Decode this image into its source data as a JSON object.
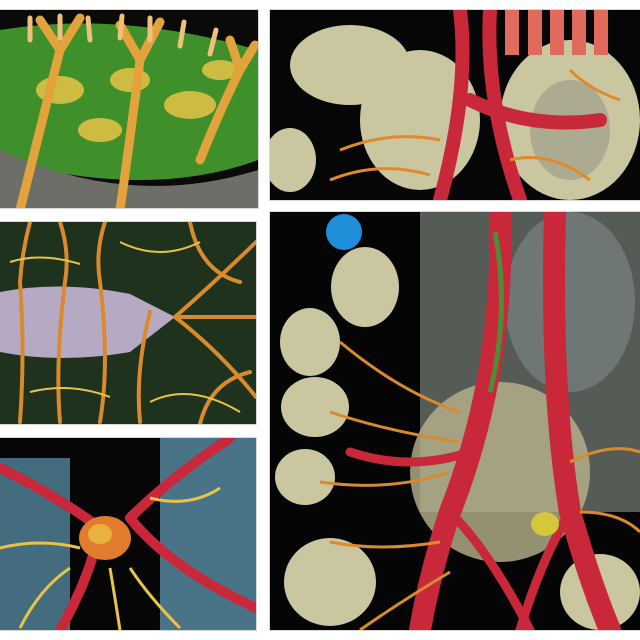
{
  "image": {
    "description_panels": [
      {
        "id": "panel-top-left",
        "subject": "green-leaf-with-yellow-branches"
      },
      {
        "id": "panel-top-right",
        "subject": "red-vessels-over-lung-lobes"
      },
      {
        "id": "panel-middle-left",
        "subject": "lavender-membrane-with-orange-fibers"
      },
      {
        "id": "panel-large-right",
        "subject": "branching-red-arteries-and-alveoli"
      },
      {
        "id": "panel-bottom-left",
        "subject": "red-nerve-cluster-on-blue-tissue"
      }
    ],
    "palette": {
      "background": "#ffffff",
      "panel_black": "#060806",
      "leaf_green": "#3f8f2a",
      "vein_yellow": "#e7c447",
      "vessel_red": "#c8283a",
      "fiber_orange": "#d98a2c",
      "alveoli_cream": "#c9c6a0",
      "membrane_lavender": "#b6a9c4",
      "tissue_blue": "#5a8fa8",
      "glow_blue": "#1e8fd8"
    }
  }
}
